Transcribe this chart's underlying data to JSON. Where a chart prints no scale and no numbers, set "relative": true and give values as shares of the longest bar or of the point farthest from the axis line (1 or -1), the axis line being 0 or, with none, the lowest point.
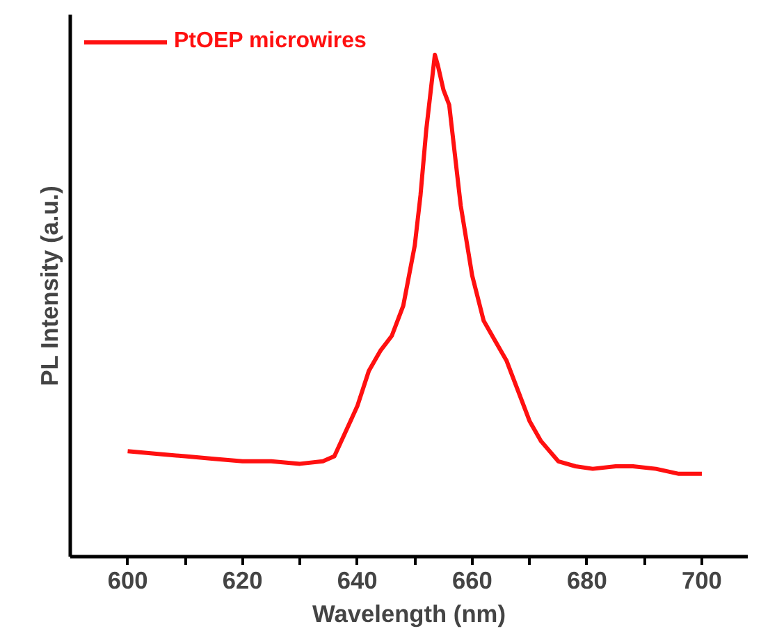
{
  "chart_data": {
    "type": "line",
    "xlabel": "Wavelength (nm)",
    "ylabel": "PL Intensity (a.u.)",
    "relative": true,
    "legend": "top left",
    "xlim": [
      590,
      708
    ],
    "xticks": [
      600,
      {
        "value": 610,
        "label": null
      },
      620,
      {
        "value": 630,
        "label": null
      },
      640,
      {
        "value": 650,
        "label": null
      },
      660,
      {
        "value": 670,
        "label": null
      },
      680,
      {
        "value": 690,
        "label": null
      },
      700
    ],
    "x": [
      600,
      605,
      610,
      615,
      620,
      625,
      630,
      634,
      636,
      638,
      640,
      642,
      644,
      646,
      648,
      650,
      651,
      652,
      653,
      653.5,
      654,
      655,
      656,
      657,
      658,
      660,
      662,
      664,
      666,
      668,
      670,
      672,
      675,
      678,
      681,
      685,
      688,
      692,
      696,
      700
    ],
    "series": [
      {
        "name": "PtOEP microwires",
        "color": "#ff1010",
        "values": [
          0.21,
          0.205,
          0.2,
          0.195,
          0.19,
          0.19,
          0.185,
          0.19,
          0.2,
          0.25,
          0.3,
          0.37,
          0.41,
          0.44,
          0.5,
          0.62,
          0.72,
          0.85,
          0.95,
          1.0,
          0.98,
          0.93,
          0.9,
          0.8,
          0.7,
          0.56,
          0.47,
          0.43,
          0.39,
          0.33,
          0.27,
          0.23,
          0.19,
          0.18,
          0.175,
          0.18,
          0.18,
          0.175,
          0.165,
          0.165
        ]
      }
    ]
  }
}
